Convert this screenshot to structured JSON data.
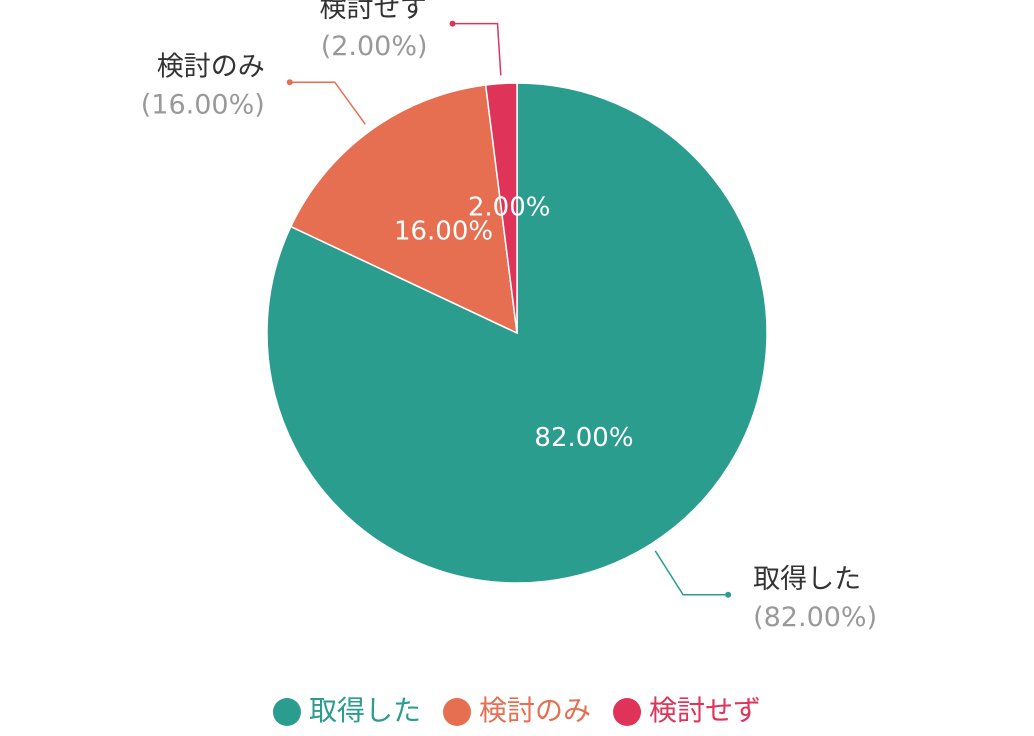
{
  "chart_data": {
    "type": "pie",
    "categories": [
      "取得した",
      "検討のみ",
      "検討せず"
    ],
    "values": [
      82,
      16,
      2
    ],
    "value_labels": [
      "82.00%",
      "16.00%",
      "2.00%"
    ],
    "outer_value_labels": [
      "(82.00%)",
      "(16.00%)",
      "(2.00%)"
    ],
    "colors": [
      "#2a9d8f",
      "#e76f51",
      "#e0335a"
    ],
    "legend": "bottom"
  }
}
